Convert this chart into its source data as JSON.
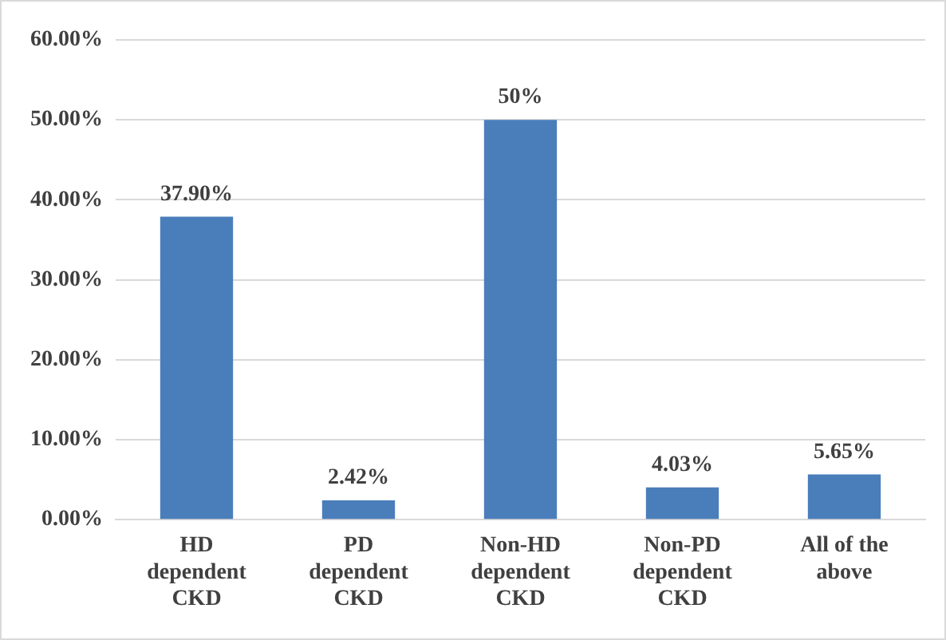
{
  "chart_data": {
    "type": "bar",
    "categories": [
      "HD dependent CKD",
      "PD dependent CKD",
      "Non-HD dependent CKD",
      "Non-PD dependent CKD",
      "All of the above"
    ],
    "values": [
      37.9,
      2.42,
      50,
      4.03,
      5.65
    ],
    "color": "#4a7ebb",
    "value_labels": [
      "37.90%",
      "2.42%",
      "50%",
      "4.03%",
      "5.65%"
    ],
    "ylim": [
      0,
      60
    ],
    "yticks": [
      {
        "value": 0,
        "label": "0.00%"
      },
      {
        "value": 10,
        "label": "10.00%"
      },
      {
        "value": 20,
        "label": "20.00%"
      },
      {
        "value": 30,
        "label": "30.00%"
      },
      {
        "value": 40,
        "label": "40.00%"
      },
      {
        "value": 50,
        "label": "50.00%"
      },
      {
        "value": 60,
        "label": "60.00%"
      }
    ],
    "grid": "y",
    "legend": false
  }
}
